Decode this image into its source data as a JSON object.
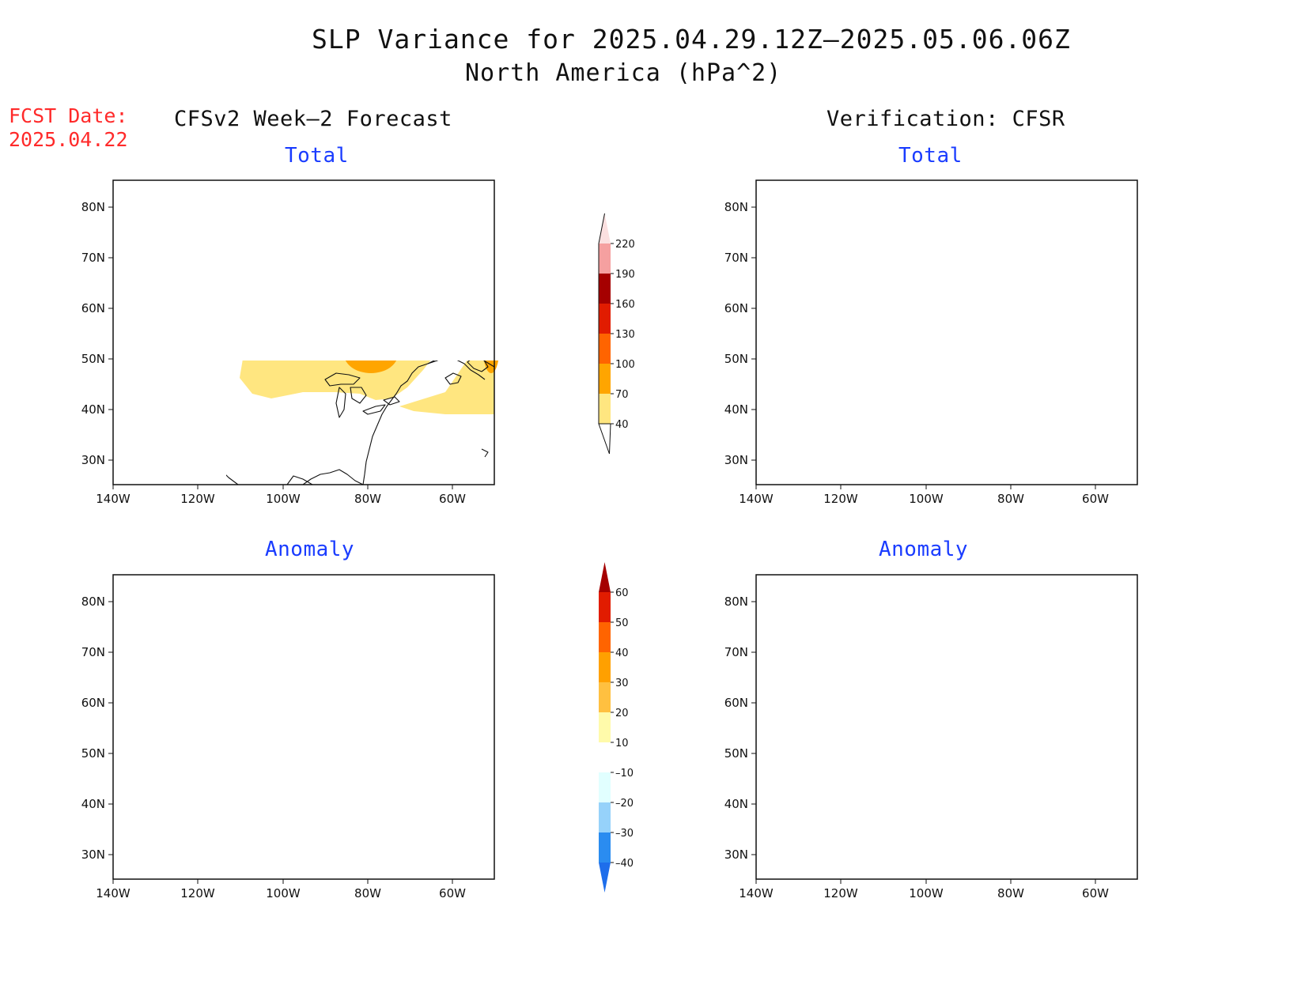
{
  "header": {
    "title": "SLP Variance for 2025.04.29.12Z–2025.05.06.06Z",
    "subtitle": "North America (hPa^2)",
    "fcst_label": "FCST Date:",
    "fcst_date": "2025.04.22",
    "left_heading": "CFSv2 Week–2 Forecast",
    "right_heading": "Verification: CFSR"
  },
  "panels": {
    "forecast_total": "Total",
    "verification_total": "Total",
    "forecast_anomaly": "Anomaly",
    "verification_anomaly": "Anomaly"
  },
  "axes": {
    "lat_labels": [
      "80N",
      "70N",
      "60N",
      "50N",
      "40N",
      "30N"
    ],
    "lon_labels": [
      "140W",
      "120W",
      "100W",
      "80W",
      "60W"
    ]
  },
  "colorbars": {
    "total": {
      "labels": [
        "40",
        "70",
        "100",
        "130",
        "160",
        "190",
        "220"
      ],
      "colors": [
        "#ffe680",
        "#ffa500",
        "#ff6400",
        "#e11c00",
        "#a50000",
        "#f5a0a0",
        "#fbe0e0"
      ]
    },
    "anomaly": {
      "labels": [
        "–40",
        "–30",
        "–20",
        "–10",
        "10",
        "20",
        "30",
        "40",
        "50",
        "60"
      ],
      "colors": [
        "#1e6eeb",
        "#2a8cf0",
        "#96d2fa",
        "#e1ffff",
        "#ffffff",
        "#fffaaa",
        "#ffc040",
        "#ffa000",
        "#ff6400",
        "#e11c00",
        "#a50000"
      ]
    }
  }
}
